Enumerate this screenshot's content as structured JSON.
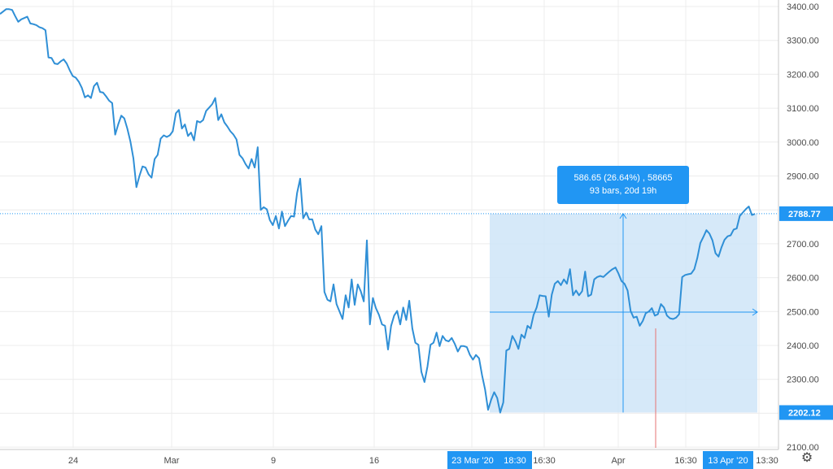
{
  "chart_data": {
    "type": "line",
    "ylim": [
      2100,
      3400
    ],
    "y_ticks": [
      "3400.00",
      "3300.00",
      "3200.00",
      "3100.00",
      "3000.00",
      "2900.00",
      "2800.00",
      "2700.00",
      "2600.00",
      "2500.00",
      "2400.00",
      "2300.00",
      "2200.00",
      "2100.00"
    ],
    "x_ticks": [
      "24",
      "Mar",
      "9",
      "16",
      "16:30",
      "Apr",
      "16:30",
      "13:30"
    ],
    "highlighted_x_labels": [
      "23 Mar '20",
      "18:30",
      "13 Apr '20"
    ],
    "price_labels": {
      "last": "2788.77",
      "low": "2202.12"
    },
    "series": [
      {
        "values": [
          3378,
          3385,
          3392,
          3392,
          3390,
          3372,
          3355,
          3362,
          3366,
          3370,
          3350,
          3348,
          3345,
          3339,
          3336,
          3330,
          3250,
          3248,
          3232,
          3230,
          3238,
          3244,
          3232,
          3212,
          3195,
          3190,
          3178,
          3160,
          3132,
          3138,
          3130,
          3165,
          3175,
          3148,
          3146,
          3135,
          3122,
          3115,
          3022,
          3052,
          3078,
          3070,
          3040,
          3002,
          2952,
          2867,
          2900,
          2928,
          2925,
          2905,
          2895,
          2950,
          2962,
          3010,
          3020,
          3015,
          3020,
          3032,
          3085,
          3095,
          3040,
          3052,
          3018,
          3028,
          3005,
          3062,
          3058,
          3065,
          3092,
          3102,
          3112,
          3130,
          3065,
          3082,
          3058,
          3046,
          3032,
          3022,
          3008,
          2962,
          2952,
          2935,
          2922,
          2950,
          2925,
          2985,
          2800,
          2808,
          2802,
          2770,
          2755,
          2782,
          2745,
          2795,
          2752,
          2768,
          2782,
          2780,
          2850,
          2892,
          2775,
          2792,
          2772,
          2772,
          2742,
          2728,
          2752,
          2558,
          2535,
          2530,
          2580,
          2522,
          2500,
          2478,
          2548,
          2512,
          2595,
          2520,
          2580,
          2560,
          2530,
          2710,
          2462,
          2540,
          2510,
          2490,
          2462,
          2458,
          2388,
          2458,
          2488,
          2502,
          2462,
          2512,
          2475,
          2532,
          2450,
          2408,
          2402,
          2322,
          2292,
          2338,
          2402,
          2408,
          2438,
          2398,
          2428,
          2415,
          2412,
          2422,
          2405,
          2382,
          2398,
          2398,
          2395,
          2372,
          2358,
          2372,
          2362,
          2312,
          2270,
          2210,
          2240,
          2262,
          2245,
          2202,
          2232,
          2385,
          2390,
          2428,
          2412,
          2390,
          2432,
          2422,
          2458,
          2450,
          2490,
          2512,
          2548,
          2546,
          2545,
          2485,
          2550,
          2582,
          2590,
          2578,
          2595,
          2582,
          2625,
          2548,
          2562,
          2548,
          2560,
          2618,
          2545,
          2550,
          2595,
          2602,
          2605,
          2602,
          2610,
          2618,
          2625,
          2630,
          2612,
          2590,
          2582,
          2562,
          2502,
          2482,
          2485,
          2458,
          2472,
          2495,
          2500,
          2510,
          2488,
          2492,
          2522,
          2512,
          2488,
          2480,
          2478,
          2482,
          2492,
          2602,
          2608,
          2610,
          2612,
          2625,
          2658,
          2702,
          2720,
          2740,
          2730,
          2710,
          2672,
          2662,
          2690,
          2712,
          2722,
          2725,
          2742,
          2745,
          2782,
          2792,
          2802,
          2810,
          2785,
          2788
        ]
      }
    ],
    "measure_tool": {
      "label_line1": "586.65 (26.64%) , 58665",
      "label_line2": "93 bars, 20d 19h",
      "from_value": 2202.12,
      "to_value": 2788.77
    },
    "colors": {
      "line": "#2f8fd6",
      "selection_fill": "#cfe5f8",
      "accent": "#2196f3",
      "label_bg": "#2196f3",
      "red_marker": "#e57373"
    },
    "grid": true
  }
}
